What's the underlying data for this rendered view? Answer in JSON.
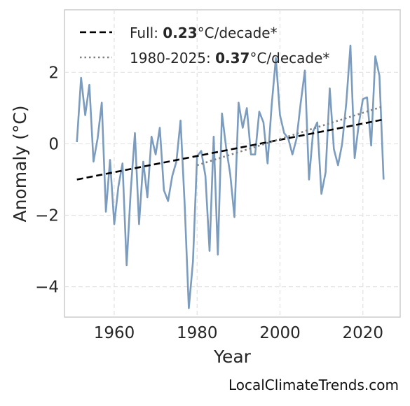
{
  "chart_data": {
    "type": "line",
    "title": "",
    "xlabel": "Year",
    "ylabel": "Anomaly (°C)",
    "xlim": [
      1948,
      2029
    ],
    "ylim": [
      -4.85,
      3.75
    ],
    "xticks": [
      1960,
      1980,
      2000,
      2020
    ],
    "yticks": [
      2,
      0,
      -2,
      -4
    ],
    "ytick_labels": [
      "2",
      "0",
      "−2",
      "−4"
    ],
    "grid": true,
    "legend_position": "top-left",
    "series": [
      {
        "name": "",
        "color": "#7b9cbe",
        "x": [
          1951,
          1952,
          1953,
          1954,
          1955,
          1956,
          1957,
          1958,
          1959,
          1960,
          1961,
          1962,
          1963,
          1964,
          1965,
          1966,
          1967,
          1968,
          1969,
          1970,
          1971,
          1972,
          1973,
          1974,
          1975,
          1976,
          1977,
          1978,
          1979,
          1980,
          1981,
          1982,
          1983,
          1984,
          1985,
          1986,
          1987,
          1988,
          1989,
          1990,
          1991,
          1992,
          1993,
          1994,
          1995,
          1996,
          1997,
          1998,
          1999,
          2000,
          2001,
          2002,
          2003,
          2004,
          2005,
          2006,
          2007,
          2008,
          2009,
          2010,
          2011,
          2012,
          2013,
          2014,
          2015,
          2016,
          2017,
          2018,
          2019,
          2020,
          2021,
          2022,
          2023,
          2024,
          2025
        ],
        "y": [
          0.05,
          1.85,
          0.8,
          1.65,
          -0.5,
          0.15,
          1.15,
          -1.9,
          -0.45,
          -2.25,
          -1.2,
          -0.55,
          -3.4,
          -1.3,
          0.3,
          -2.25,
          -0.5,
          -1.5,
          0.2,
          -0.3,
          0.45,
          -1.3,
          -1.6,
          -0.9,
          -0.5,
          0.65,
          -1.7,
          -4.6,
          -3.3,
          -0.35,
          -0.2,
          -0.9,
          -3.0,
          0.2,
          -3.1,
          0.85,
          -0.1,
          -0.85,
          -2.05,
          1.15,
          0.45,
          1.0,
          -0.3,
          -0.3,
          0.9,
          0.6,
          -0.55,
          1.1,
          2.4,
          0.8,
          0.3,
          0.15,
          -0.3,
          0.15,
          1.15,
          2.05,
          -1.0,
          0.35,
          0.6,
          -1.4,
          -0.8,
          1.55,
          -0.15,
          -0.6,
          0.0,
          1.15,
          2.75,
          -0.4,
          0.55,
          1.25,
          1.3,
          -0.05,
          2.45,
          1.9,
          -1.0
        ]
      },
      {
        "name": "Full: 0.23°C/decade*",
        "style": "dashed",
        "color": "#000000",
        "x": [
          1951,
          2025
        ],
        "y": [
          -1.0,
          0.68
        ]
      },
      {
        "name": "1980-2025: 0.37°C/decade*",
        "style": "dotted",
        "color": "#808080",
        "x": [
          1980,
          2025
        ],
        "y": [
          -0.6,
          1.05
        ]
      }
    ],
    "legend": [
      {
        "prefix": "Full: ",
        "bold": "0.23",
        "suffix": "°C/decade*"
      },
      {
        "prefix": "1980-2025: ",
        "bold": "0.37",
        "suffix": "°C/decade*"
      }
    ]
  },
  "watermark": "LocalClimateTrends.com"
}
